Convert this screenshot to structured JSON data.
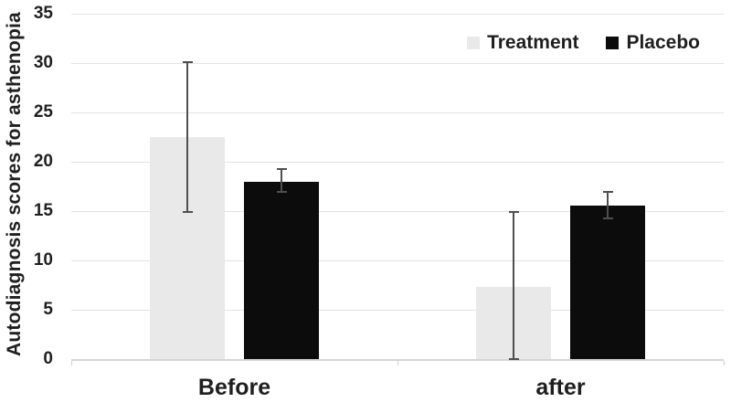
{
  "chart_data": {
    "type": "bar",
    "title": "",
    "ylabel": "Autodiagnosis scores for asthenopia",
    "xlabel": "",
    "categories": [
      "Before",
      "after"
    ],
    "series": [
      {
        "name": "Treatment",
        "color": "#e9e9e9",
        "values": [
          22.5,
          7.3
        ],
        "error_high": [
          30.1,
          14.9
        ],
        "error_low": [
          14.9,
          0
        ]
      },
      {
        "name": "Placebo",
        "color": "#0c0c0c",
        "values": [
          18.0,
          15.6
        ],
        "error_high": [
          19.3,
          16.9
        ],
        "error_low": [
          16.9,
          14.3
        ]
      }
    ],
    "ylim": [
      0,
      35
    ],
    "ytick_step": 5,
    "grid": true,
    "legend_position": "top-right",
    "colors": {
      "gridline": "#e3e3e3",
      "axis_line": "#d5d5d5",
      "error_bar": "#4f4f4f",
      "text": "#1f1f1f",
      "background": "#ffffff"
    }
  }
}
